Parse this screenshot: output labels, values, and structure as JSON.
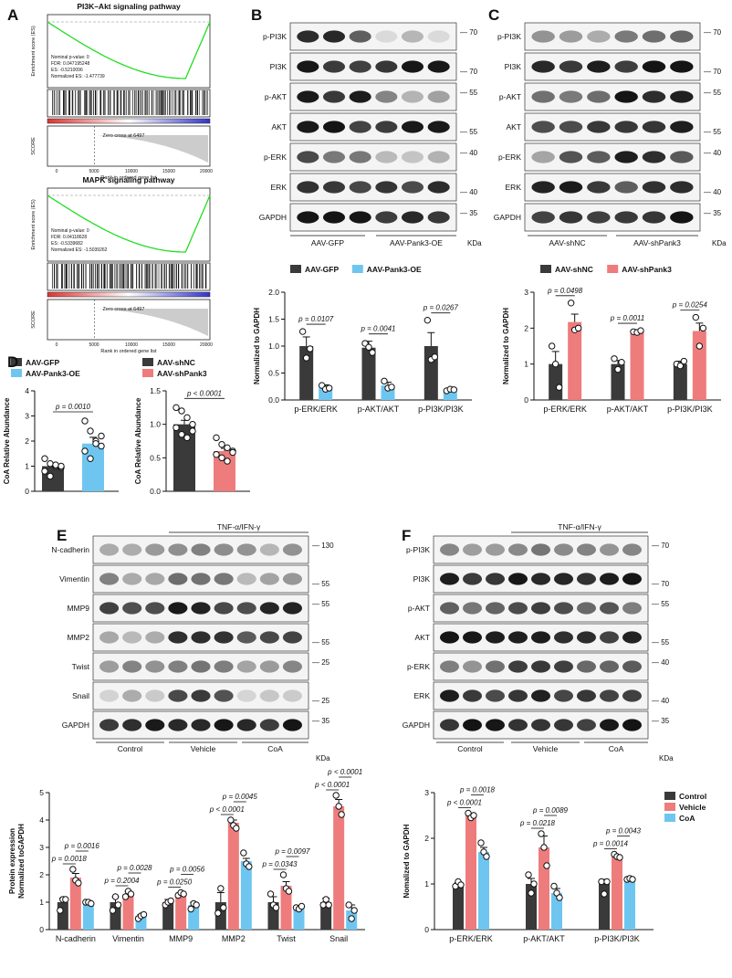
{
  "panels": {
    "A": {
      "letter": "A",
      "top_title": "PI3K–Akt signaling pathway",
      "top_stats": [
        "Nominal p-value: 0",
        "FDR: 0.047195248",
        "ES: -0.5210096",
        "Normalized ES: -1.477739"
      ],
      "top_zero": "Zero cross at 6497",
      "bottom_title": "MAPK signaling pathway",
      "bottom_stats": [
        "Nominal p-value: 0",
        "FDR: 0.04118628",
        "ES: -0.5339682",
        "Normalized ES: -1.5039262"
      ],
      "bottom_zero": "Zero cross at 6497",
      "es_label": "Enrichment score (ES)",
      "score_label": "SCORE",
      "x_label": "Rank in ordered gene list",
      "x_ticks": [
        "0",
        "5000",
        "10000",
        "15000",
        "20000"
      ]
    },
    "B": {
      "letter": "B",
      "blot_rows": [
        "p-PI3K",
        "PI3K",
        "p-AKT",
        "AKT",
        "p-ERK",
        "ERK",
        "GAPDH"
      ],
      "markers": [
        "70",
        "70",
        "55",
        "55",
        "40",
        "40",
        "35"
      ],
      "groups": [
        "AAV-GFP",
        "AAV-Pank3-OE"
      ],
      "kda": "KDa"
    },
    "C": {
      "letter": "C",
      "blot_rows": [
        "p-PI3K",
        "PI3K",
        "p-AKT",
        "AKT",
        "p-ERK",
        "ERK",
        "GAPDH"
      ],
      "markers": [
        "70",
        "70",
        "55",
        "55",
        "40",
        "40",
        "35"
      ],
      "groups": [
        "AAV-shNC",
        "AAV-shPank3"
      ],
      "kda": "KDa"
    },
    "D": {
      "letter": "D"
    },
    "E": {
      "letter": "E",
      "treatment": "TNF-α/IFN-γ",
      "blot_rows": [
        "N-cadherin",
        "Vimentin",
        "MMP9",
        "MMP2",
        "Twist",
        "Snail",
        "GAPDH"
      ],
      "markers": [
        "130",
        "55",
        "55",
        "55",
        "25",
        "25",
        "35"
      ],
      "groups": [
        "Control",
        "Vehicle",
        "CoA"
      ],
      "kda": "KDa"
    },
    "F": {
      "letter": "F",
      "treatment": "TNF-α/IFN-γ",
      "blot_rows": [
        "p-PI3K",
        "PI3K",
        "p-AKT",
        "AKT",
        "p-ERK",
        "ERK",
        "GAPDH"
      ],
      "markers": [
        "70",
        "70",
        "55",
        "55",
        "40",
        "40",
        "35"
      ],
      "groups": [
        "Control",
        "Vehicle",
        "CoA"
      ],
      "kda": "KDa"
    }
  },
  "colors": {
    "dark": "#3a3a3a",
    "blue": "#6ec6f0",
    "red": "#ee7c7c",
    "green": "#22dd22"
  },
  "chart_data": [
    {
      "id": "B",
      "type": "bar",
      "ylabel": "Normalized to GAPDH",
      "ylim": [
        0,
        2.0
      ],
      "yticks": [
        "0.0",
        "0.5",
        "1.0",
        "1.5",
        "2.0"
      ],
      "categories": [
        "p-ERK/ERK",
        "p-AKT/AKT",
        "p-PI3K/PI3K"
      ],
      "series": [
        {
          "name": "AAV-GFP",
          "color": "#3a3a3a",
          "values": [
            1.0,
            0.97,
            1.0
          ],
          "errors": [
            0.17,
            0.12,
            0.25
          ],
          "points": [
            [
              1.27,
              0.78,
              0.95
            ],
            [
              1.05,
              0.98,
              0.88
            ],
            [
              1.48,
              0.75,
              0.8
            ]
          ]
        },
        {
          "name": "AAV-Pank3-OE",
          "color": "#6ec6f0",
          "values": [
            0.23,
            0.27,
            0.19
          ],
          "errors": [
            0.05,
            0.06,
            0.02
          ],
          "points": [
            [
              0.27,
              0.2,
              0.22
            ],
            [
              0.35,
              0.22,
              0.24
            ],
            [
              0.17,
              0.2,
              0.19
            ]
          ]
        }
      ],
      "pvalues": [
        "p = 0.0107",
        "p = 0.0041",
        "p = 0.0267"
      ]
    },
    {
      "id": "C",
      "type": "bar",
      "ylabel": "Normalized to GAPDH",
      "ylim": [
        0,
        3
      ],
      "yticks": [
        "0",
        "1",
        "2",
        "3"
      ],
      "categories": [
        "p-ERK/ERK",
        "p-AKT/AKT",
        "p-PI3K/PI3K"
      ],
      "series": [
        {
          "name": "AAV-shNC",
          "color": "#3a3a3a",
          "values": [
            1.0,
            1.0,
            1.0
          ],
          "errors": [
            0.35,
            0.1,
            0.08
          ],
          "points": [
            [
              1.5,
              1.0,
              0.35
            ],
            [
              1.15,
              0.85,
              1.05
            ],
            [
              1.0,
              0.95,
              1.08
            ]
          ]
        },
        {
          "name": "AAV-shPank3",
          "color": "#ee7c7c",
          "values": [
            2.17,
            1.9,
            1.92
          ],
          "errors": [
            0.22,
            0.03,
            0.22
          ],
          "points": [
            [
              2.7,
              1.95,
              2.0
            ],
            [
              1.9,
              1.88,
              1.93
            ],
            [
              2.3,
              1.5,
              2.0
            ]
          ]
        }
      ],
      "pvalues": [
        "p = 0.0498",
        "p = 0.0011",
        "p = 0.0254"
      ]
    },
    {
      "id": "D1",
      "type": "bar",
      "ylabel": "CoA  Relative Abundance",
      "ylim": [
        0,
        4
      ],
      "yticks": [
        "0",
        "1",
        "2",
        "3",
        "4"
      ],
      "categories": [
        "AAV-GFP",
        "AAV-Pank3-OE"
      ],
      "series": [
        {
          "name": "",
          "values": [
            1.0,
            1.9
          ],
          "errors": [
            0.1,
            0.25
          ],
          "colors": [
            "#3a3a3a",
            "#6ec6f0"
          ],
          "points": [
            [
              1.3,
              1.1,
              1.0,
              0.95,
              0.8,
              0.6,
              1.05,
              1.0
            ],
            [
              2.8,
              2.4,
              2.0,
              1.8,
              1.6,
              1.3,
              1.9,
              2.2
            ]
          ]
        }
      ],
      "pvalues": [
        "p = 0.0010"
      ]
    },
    {
      "id": "D2",
      "type": "bar",
      "ylabel": "CoA  Relative Abundance",
      "ylim": [
        0,
        1.5
      ],
      "yticks": [
        "0.0",
        "0.5",
        "1.0",
        "1.5"
      ],
      "categories": [
        "AAV-shNC",
        "AAV-shPank3"
      ],
      "series": [
        {
          "name": "",
          "values": [
            1.0,
            0.6
          ],
          "errors": [
            0.06,
            0.04
          ],
          "colors": [
            "#3a3a3a",
            "#ee7c7c"
          ],
          "points": [
            [
              1.25,
              1.2,
              1.1,
              1.0,
              0.95,
              0.85,
              0.8,
              0.9
            ],
            [
              0.8,
              0.7,
              0.65,
              0.6,
              0.55,
              0.5,
              0.45,
              0.58
            ]
          ]
        }
      ],
      "pvalues": [
        "p < 0.0001"
      ]
    },
    {
      "id": "E",
      "type": "bar",
      "ylabel": "Protein  expression\nNormalized toGAPDH",
      "ylim": [
        0,
        5
      ],
      "yticks": [
        "0",
        "1",
        "2",
        "3",
        "4",
        "5"
      ],
      "categories": [
        "N-cadherin",
        "Vimentin",
        "MMP9",
        "MMP2",
        "Twist",
        "Snail"
      ],
      "series": [
        {
          "name": "Control",
          "color": "#3a3a3a",
          "values": [
            1.0,
            1.0,
            1.0,
            1.0,
            1.0,
            1.0
          ],
          "errors": [
            0.15,
            0.2,
            0.1,
            0.35,
            0.2,
            0.15
          ],
          "points": [
            [
              0.7,
              1.1,
              1.1
            ],
            [
              0.7,
              1.2,
              0.9
            ],
            [
              0.9,
              1.0,
              1.05
            ],
            [
              0.6,
              1.5,
              0.8
            ],
            [
              1.3,
              0.9,
              0.8
            ],
            [
              0.9,
              1.1,
              0.9
            ]
          ]
        },
        {
          "name": "Vehicle",
          "color": "#ee7c7c",
          "values": [
            1.9,
            1.3,
            1.3,
            3.9,
            1.6,
            4.5
          ],
          "errors": [
            0.15,
            0.1,
            0.05,
            0.1,
            0.15,
            0.25
          ],
          "points": [
            [
              2.2,
              1.8,
              1.7
            ],
            [
              1.2,
              1.4,
              1.3
            ],
            [
              1.25,
              1.35,
              1.3
            ],
            [
              4.0,
              3.8,
              3.7
            ],
            [
              2.0,
              1.5,
              1.4
            ],
            [
              4.9,
              4.5,
              4.2
            ]
          ]
        },
        {
          "name": "CoA",
          "color": "#6ec6f0",
          "values": [
            1.0,
            0.5,
            0.9,
            2.5,
            0.8,
            0.7
          ],
          "errors": [
            0.05,
            0.05,
            0.1,
            0.1,
            0.05,
            0.2
          ],
          "points": [
            [
              1.0,
              1.0,
              0.95
            ],
            [
              0.4,
              0.5,
              0.55
            ],
            [
              0.75,
              0.95,
              0.9
            ],
            [
              2.8,
              2.4,
              2.3
            ],
            [
              0.8,
              0.75,
              0.85
            ],
            [
              0.9,
              0.4,
              0.7
            ]
          ]
        }
      ],
      "pvalues": [
        [
          "p = 0.0018",
          "p = 0.0016"
        ],
        [
          "p = 0.2004",
          "p = 0.0028"
        ],
        [
          "p = 0.0250",
          "p = 0.0056"
        ],
        [
          "p < 0.0001",
          "p = 0.0045"
        ],
        [
          "p = 0.0343",
          "p = 0.0097"
        ],
        [
          "p < 0.0001",
          "p < 0.0001"
        ]
      ]
    },
    {
      "id": "F",
      "type": "bar",
      "ylabel": "Nomalized to GAPDH",
      "ylim": [
        0,
        3
      ],
      "yticks": [
        "0",
        "1",
        "2",
        "3"
      ],
      "categories": [
        "p-ERK/ERK",
        "p-AKT/AKT",
        "p-PI3K/PI3K"
      ],
      "series": [
        {
          "name": "Control",
          "color": "#3a3a3a",
          "values": [
            1.0,
            1.0,
            1.0
          ],
          "errors": [
            0.03,
            0.12,
            0.1
          ],
          "points": [
            [
              0.95,
              1.05,
              0.98
            ],
            [
              1.2,
              0.8,
              1.0
            ],
            [
              1.05,
              0.78,
              1.05
            ]
          ]
        },
        {
          "name": "Vehicle",
          "color": "#ee7c7c",
          "values": [
            2.5,
            1.8,
            1.6
          ],
          "errors": [
            0.05,
            0.25,
            0.03
          ],
          "points": [
            [
              2.55,
              2.45,
              2.5
            ],
            [
              2.1,
              1.8,
              1.4
            ],
            [
              1.65,
              1.6,
              1.58
            ]
          ]
        },
        {
          "name": "CoA",
          "color": "#6ec6f0",
          "values": [
            1.7,
            0.8,
            1.1
          ],
          "errors": [
            0.1,
            0.1,
            0.02
          ],
          "points": [
            [
              1.9,
              1.7,
              1.6
            ],
            [
              0.95,
              0.8,
              0.7
            ],
            [
              1.1,
              1.12,
              1.1
            ]
          ]
        }
      ],
      "pvalues": [
        [
          "p < 0.0001",
          "p = 0.0018"
        ],
        [
          "p = 0.0218",
          "p = 0.0089"
        ],
        [
          "p = 0.0014",
          "p = 0.0043"
        ]
      ]
    }
  ]
}
